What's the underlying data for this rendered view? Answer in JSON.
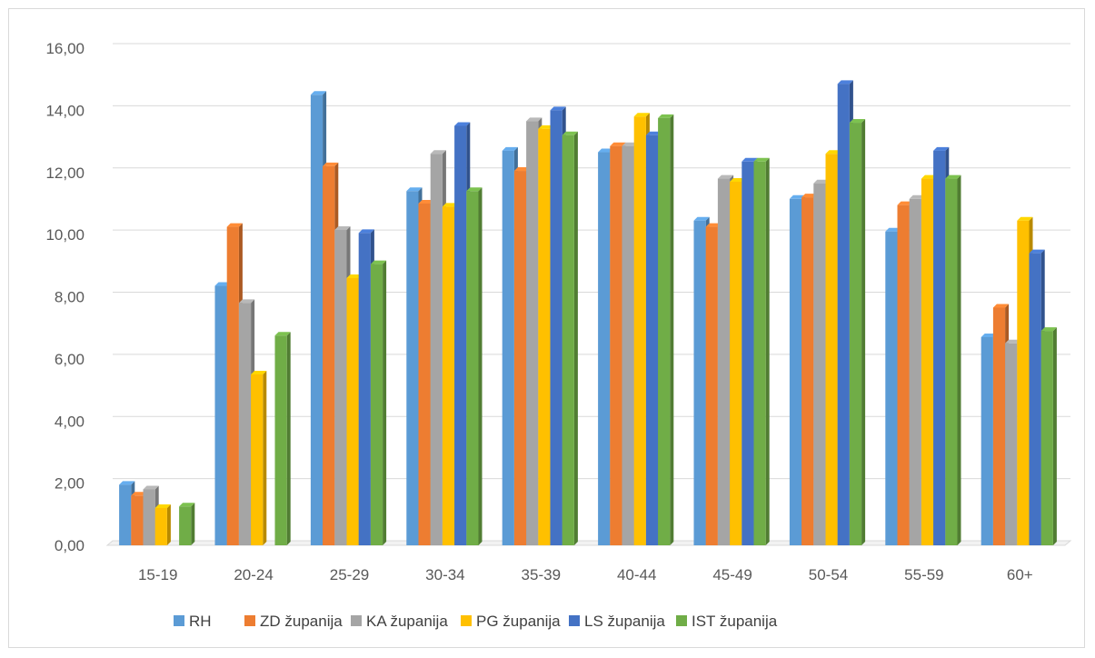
{
  "chart_data": {
    "type": "bar",
    "title": "",
    "xlabel": "",
    "ylabel": "",
    "ylim": [
      0,
      16
    ],
    "y_ticks": [
      "0,00",
      "2,00",
      "4,00",
      "6,00",
      "8,00",
      "10,00",
      "12,00",
      "14,00",
      "16,00"
    ],
    "grid": true,
    "legend_position": "bottom",
    "categories": [
      "15-19",
      "20-24",
      "25-29",
      "30-34",
      "35-39",
      "40-44",
      "45-49",
      "50-54",
      "55-59",
      "60+"
    ],
    "series": [
      {
        "name": "RH",
        "color": "#5b9bd5",
        "values": [
          1.95,
          8.35,
          14.5,
          11.4,
          12.7,
          12.65,
          10.45,
          11.15,
          10.1,
          6.7
        ]
      },
      {
        "name": "ZD županija",
        "color": "#ed7d31",
        "values": [
          1.6,
          10.25,
          12.2,
          11.0,
          12.05,
          12.85,
          10.25,
          11.2,
          10.95,
          7.65
        ]
      },
      {
        "name": "KA županija",
        "color": "#a5a5a5",
        "values": [
          1.8,
          7.8,
          10.15,
          12.6,
          13.65,
          12.85,
          11.8,
          11.65,
          11.15,
          6.5
        ]
      },
      {
        "name": "PG županija",
        "color": "#ffc000",
        "values": [
          1.2,
          5.5,
          8.6,
          10.9,
          13.4,
          13.8,
          11.7,
          12.6,
          11.8,
          10.45
        ]
      },
      {
        "name": "LS županija",
        "color": "#4472c4",
        "values": [
          0,
          0,
          10.05,
          13.5,
          14.0,
          13.2,
          12.35,
          14.85,
          12.7,
          9.4
        ]
      },
      {
        "name": "IST županija",
        "color": "#70ad47",
        "values": [
          1.25,
          6.75,
          9.05,
          11.4,
          13.2,
          13.75,
          12.35,
          13.6,
          11.8,
          6.9
        ]
      }
    ]
  }
}
